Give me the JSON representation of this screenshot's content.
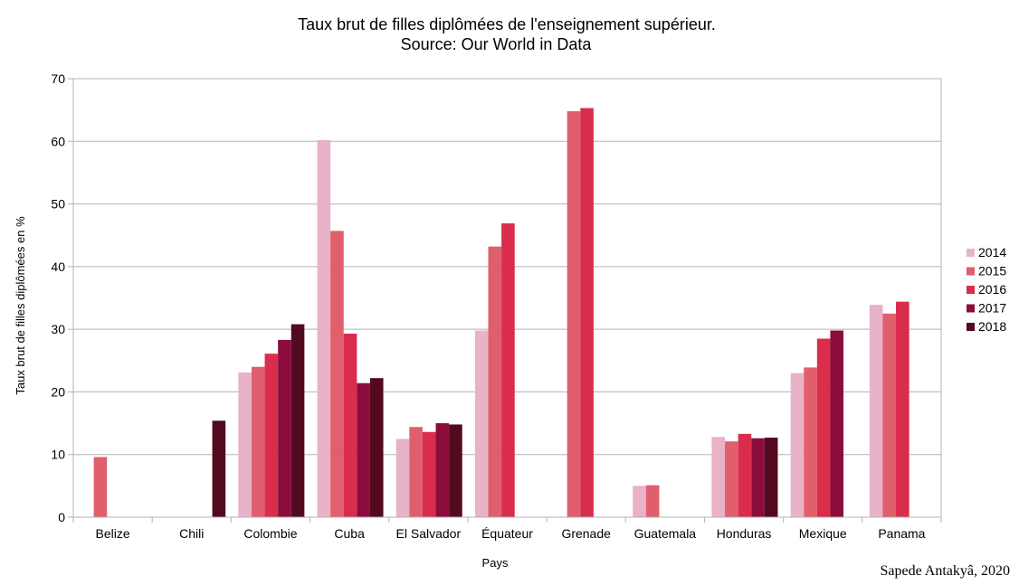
{
  "chart_data": {
    "type": "bar",
    "title": "Taux brut de filles diplômées de l'enseignement supérieur.",
    "subtitle": "Source: Our World in Data",
    "xlabel": "Pays",
    "ylabel": "Taux brut de filles diplômées en %",
    "ylim": [
      0,
      70
    ],
    "yticks": [
      0,
      10,
      20,
      30,
      40,
      50,
      60,
      70
    ],
    "grid": true,
    "legend_position": "right",
    "categories": [
      "Belize",
      "Chili",
      "Colombie",
      "Cuba",
      "El Salvador",
      "Équateur",
      "Grenade",
      "Guatemala",
      "Honduras",
      "Mexique",
      "Panama"
    ],
    "series": [
      {
        "name": "2014",
        "color": "#e8b2c9",
        "values": [
          null,
          null,
          23.1,
          60.2,
          12.5,
          29.8,
          null,
          5.0,
          12.8,
          23.0,
          33.9
        ]
      },
      {
        "name": "2015",
        "color": "#e05f6d",
        "values": [
          9.6,
          null,
          24.0,
          45.7,
          14.4,
          43.2,
          64.8,
          5.1,
          12.1,
          23.9,
          32.5
        ]
      },
      {
        "name": "2016",
        "color": "#d92d4b",
        "values": [
          null,
          null,
          26.1,
          29.3,
          13.6,
          46.9,
          65.3,
          null,
          13.3,
          28.5,
          34.4
        ]
      },
      {
        "name": "2017",
        "color": "#8c0d3d",
        "values": [
          null,
          null,
          28.3,
          21.4,
          15.0,
          null,
          null,
          null,
          12.6,
          29.8,
          null
        ]
      },
      {
        "name": "2018",
        "color": "#520a1e",
        "values": [
          null,
          15.4,
          30.8,
          22.2,
          14.8,
          null,
          null,
          null,
          12.7,
          null,
          null
        ]
      }
    ]
  },
  "credit": "Sapede Antakyâ, 2020"
}
